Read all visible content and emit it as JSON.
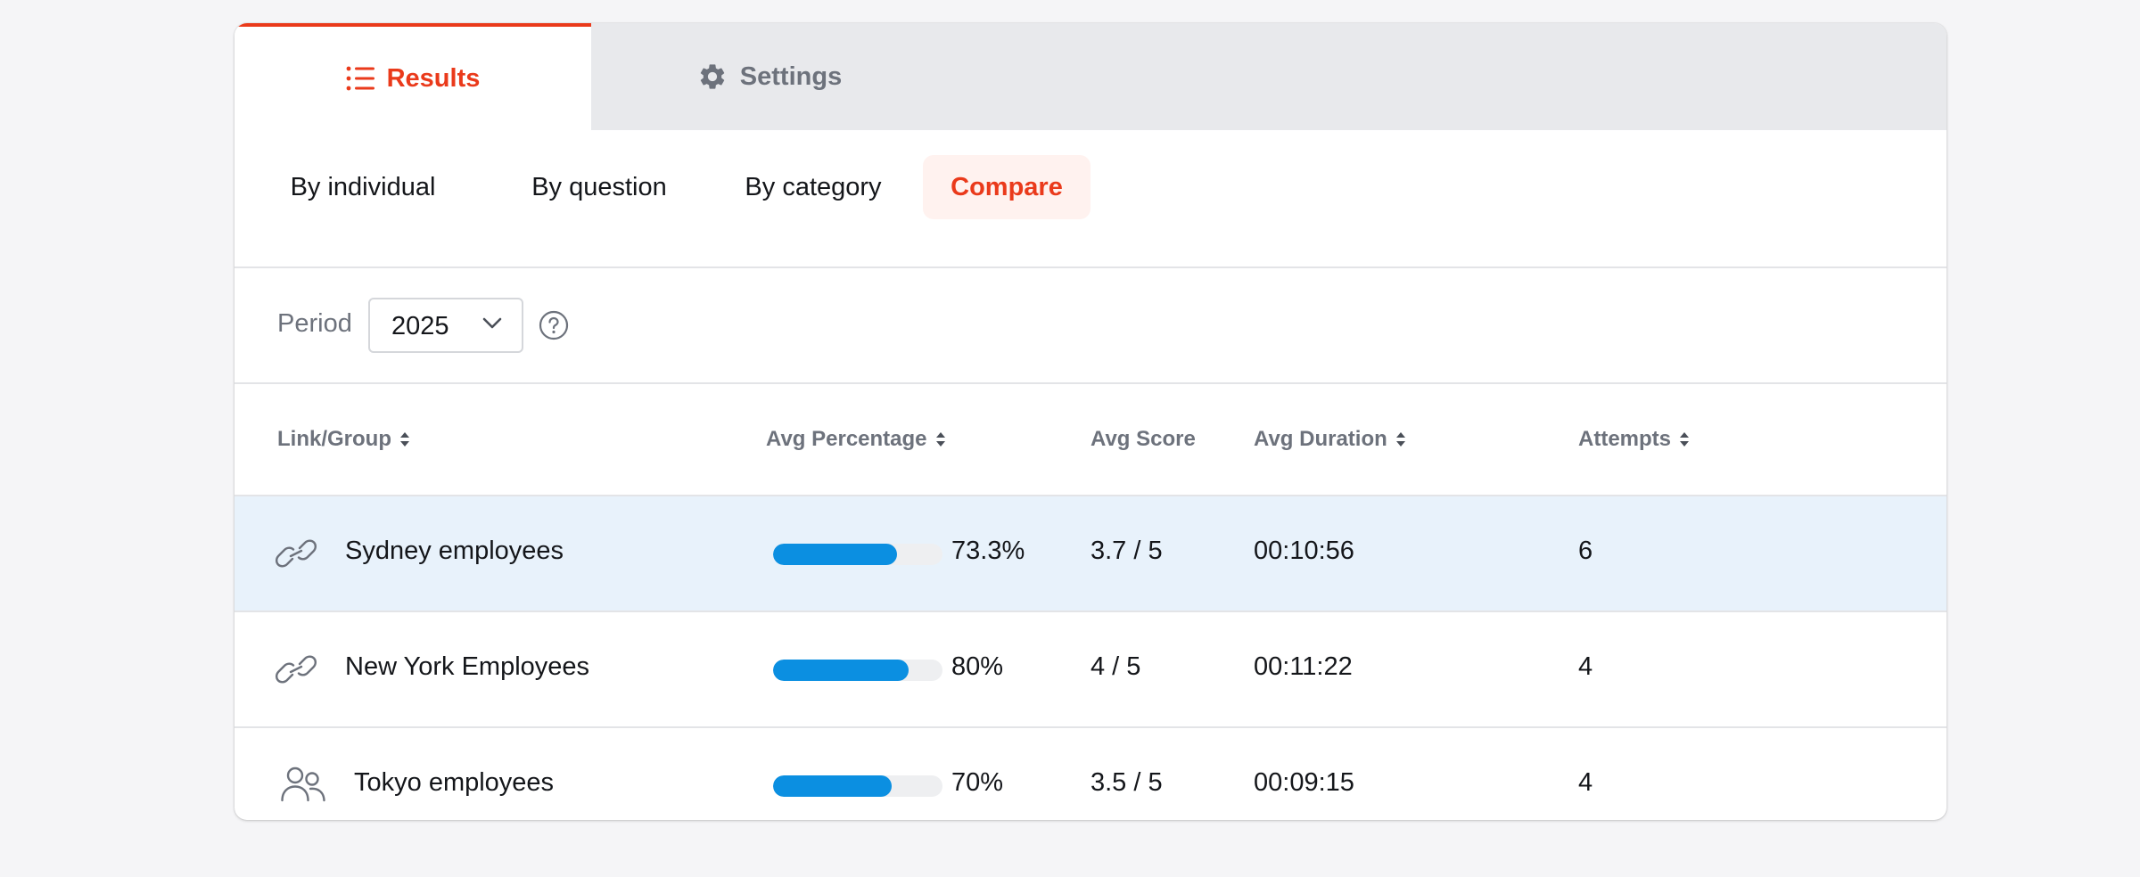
{
  "tabs": [
    {
      "label": "Results",
      "icon": "list-icon",
      "active": true
    },
    {
      "label": "Settings",
      "icon": "gear-icon",
      "active": false
    }
  ],
  "subtabs": [
    {
      "label": "By individual",
      "active": false
    },
    {
      "label": "By question",
      "active": false
    },
    {
      "label": "By category",
      "active": false
    },
    {
      "label": "Compare",
      "active": true
    }
  ],
  "period": {
    "label": "Period",
    "value": "2025",
    "help_icon": "question-circle-icon"
  },
  "table": {
    "columns": [
      {
        "label": "Link/Group",
        "sortable": true
      },
      {
        "label": "Avg Percentage",
        "sortable": true
      },
      {
        "label": "Avg Score",
        "sortable": false
      },
      {
        "label": "Avg Duration",
        "sortable": true
      },
      {
        "label": "Attempts",
        "sortable": true
      }
    ],
    "rows": [
      {
        "icon": "link-icon",
        "name": "Sydney employees",
        "percent": 73.3,
        "percent_label": "73.3%",
        "score": "3.7 / 5",
        "duration": "00:10:56",
        "attempts": "6",
        "highlighted": true
      },
      {
        "icon": "link-icon",
        "name": "New York Employees",
        "percent": 80,
        "percent_label": "80%",
        "score": "4 / 5",
        "duration": "00:11:22",
        "attempts": "4",
        "highlighted": false
      },
      {
        "icon": "users-icon",
        "name": "Tokyo employees",
        "percent": 70,
        "percent_label": "70%",
        "score": "3.5 / 5",
        "duration": "00:09:15",
        "attempts": "4",
        "highlighted": false
      }
    ]
  },
  "colors": {
    "accent": "#ea3a1b",
    "bar": "#0b8fe1",
    "row_highlight": "#e8f2fb"
  }
}
